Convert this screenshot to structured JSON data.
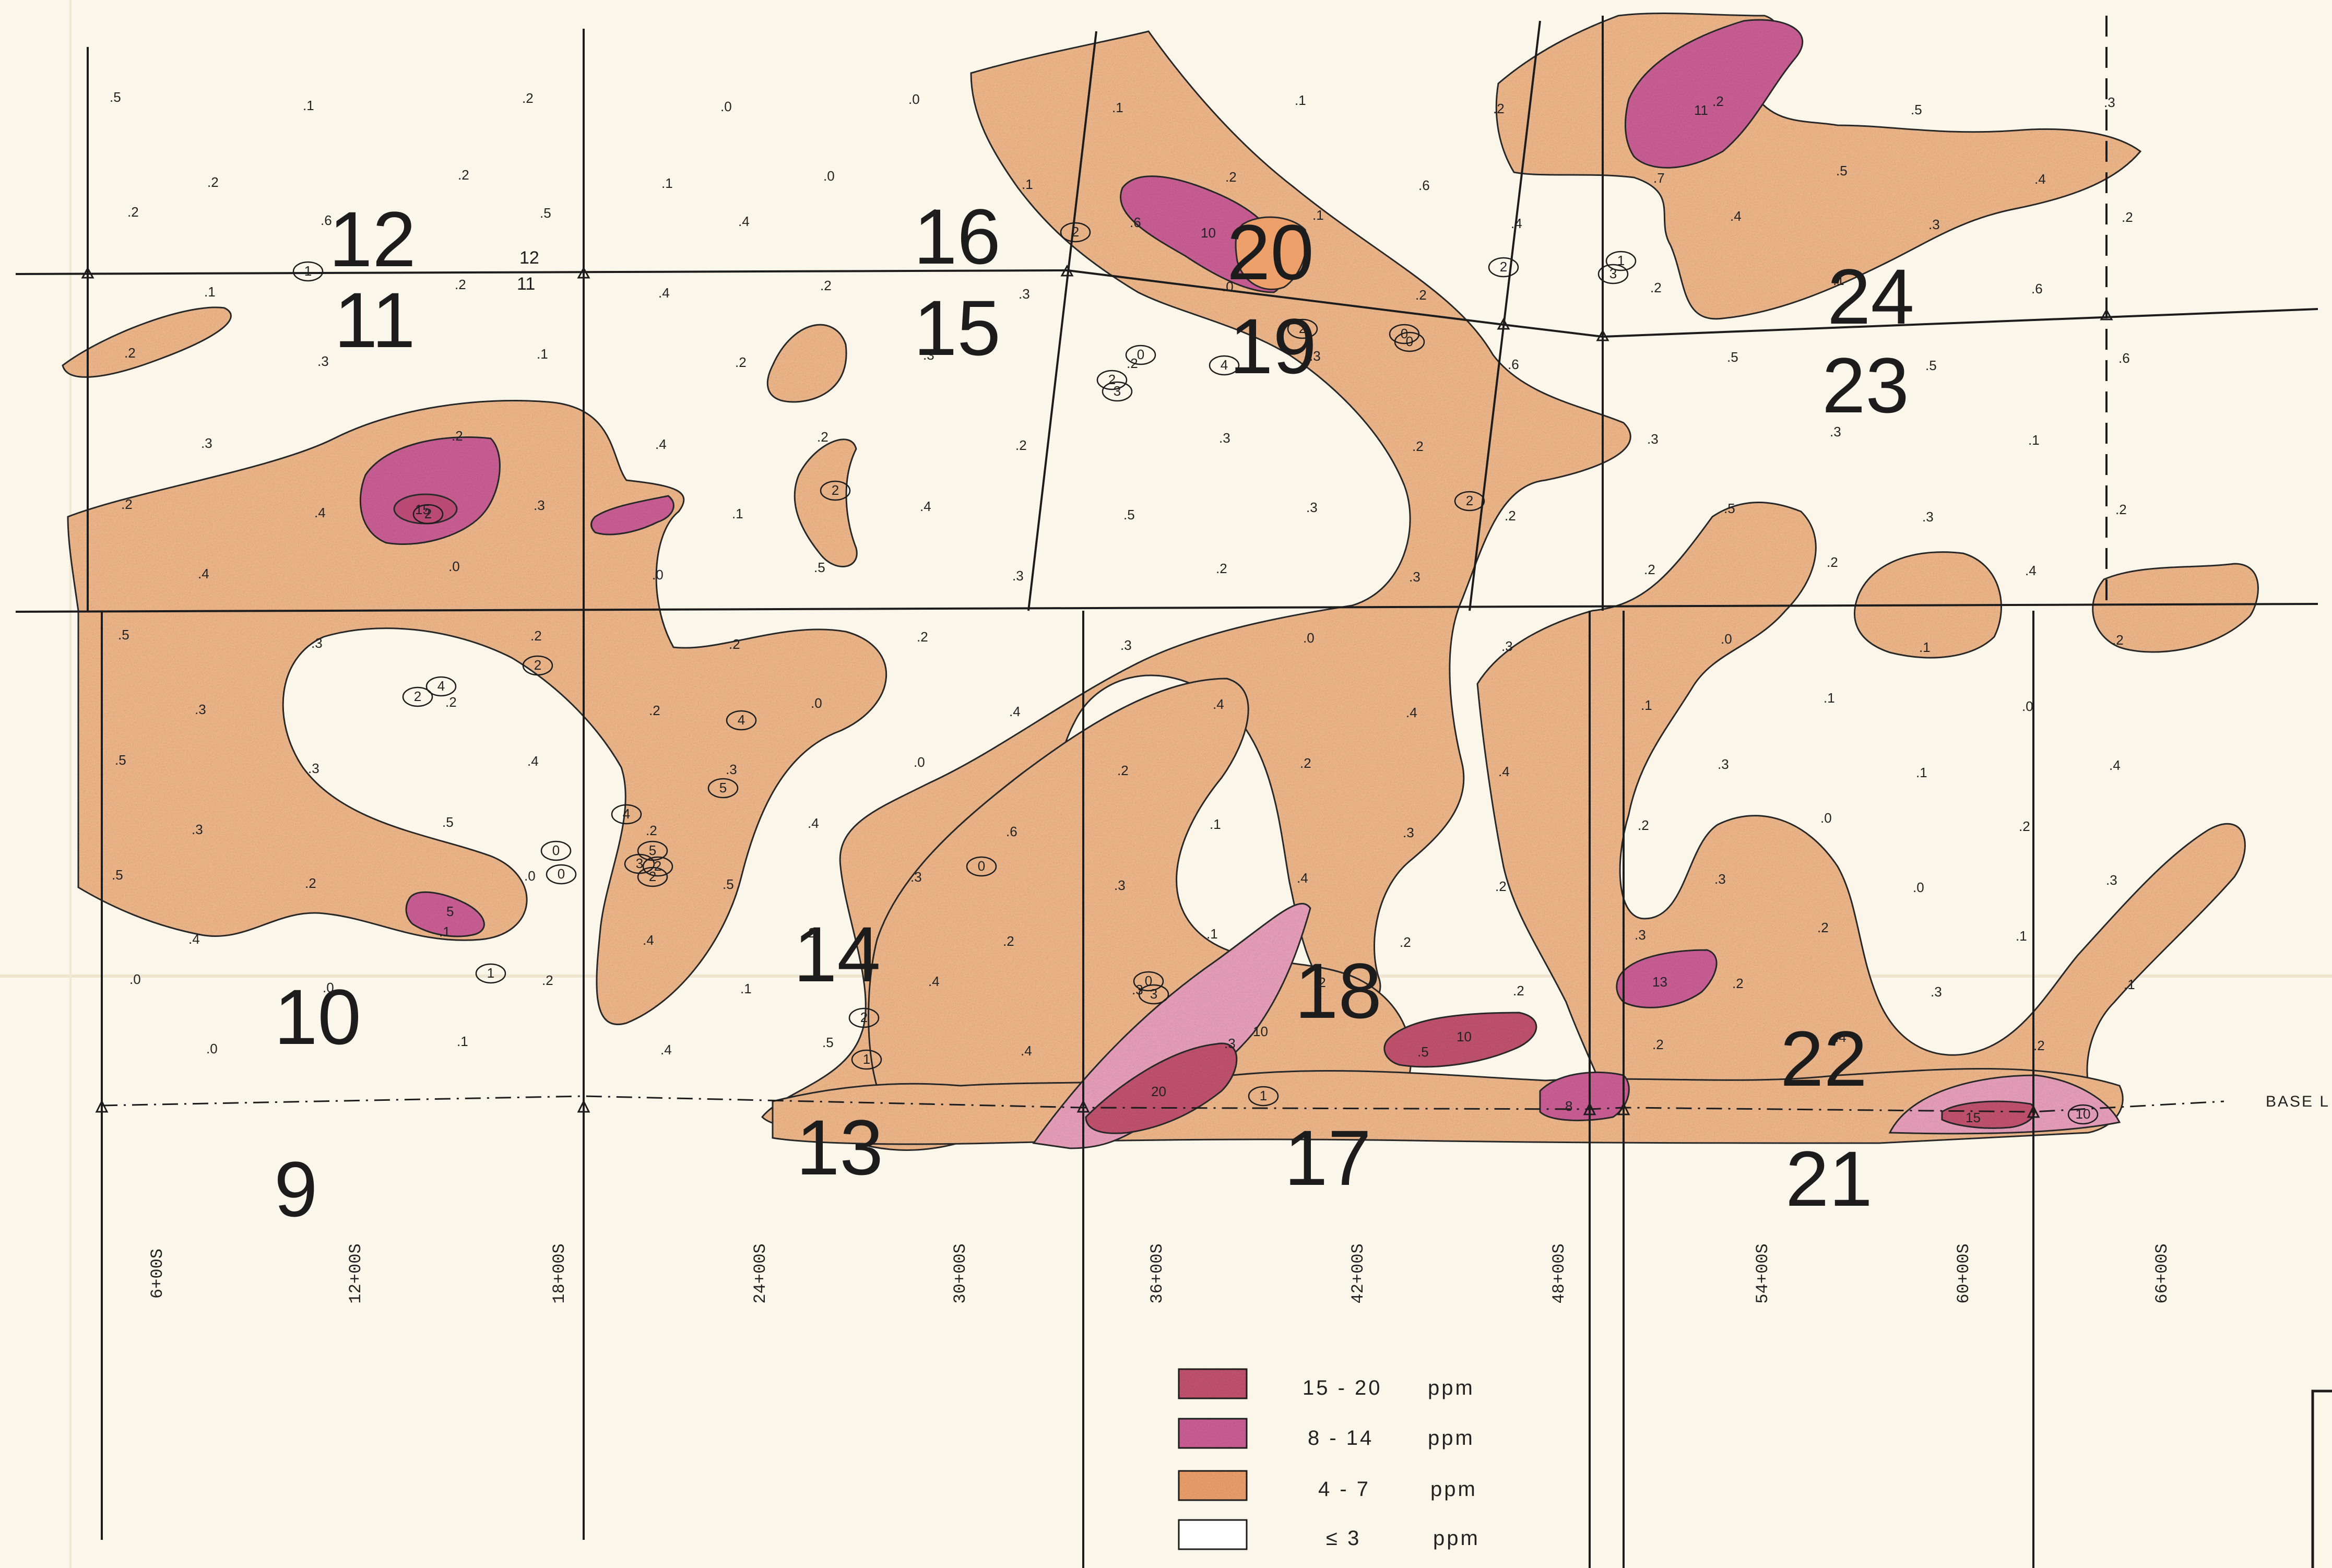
{
  "colors": {
    "paper": "#fbf6ea",
    "low_orange": "#f0b88c",
    "mid_magenta": "#cc5f96",
    "high_red": "#c2536f",
    "pink": "#e9a0bb",
    "line": "#1c1c1c"
  },
  "grid_numbers": [
    "12",
    "11",
    "16",
    "15",
    "20",
    "19",
    "24",
    "23",
    "10",
    "9",
    "14",
    "13",
    "18",
    "17",
    "22",
    "21"
  ],
  "stations": [
    "6+00S",
    "12+00S",
    "18+00S",
    "24+00S",
    "30+00S",
    "36+00S",
    "42+00S",
    "48+00S",
    "54+00S",
    "60+00S",
    "66+00S"
  ],
  "baseline_label": "BASE L",
  "top_line_labels": [
    "12",
    "11"
  ],
  "legend": [
    {
      "label": "15 - 20",
      "unit": "ppm",
      "color": "#c2536f"
    },
    {
      "label": "8 - 14",
      "unit": "ppm",
      "color": "#cc5f96"
    },
    {
      "label": "4 - 7",
      "unit": "ppm",
      "color": "#f0b88c"
    },
    {
      "label": "≤ 3",
      "unit": "ppm",
      "color": "#ffffff"
    }
  ],
  "samples": [
    ".5",
    ".1",
    ".2",
    ".0",
    ".0",
    ".1",
    ".1",
    ".2",
    ".2",
    ".5",
    ".3",
    ".2",
    ".2",
    ".1",
    ".0",
    ".1",
    ".2",
    ".6",
    ".7",
    ".5",
    ".4",
    ".2",
    ".6",
    ".5",
    ".4",
    ".4",
    ".6",
    ".1",
    ".4",
    ".4",
    ".3",
    ".2",
    ".1",
    ".2",
    ".4",
    ".2",
    ".3",
    ".0",
    ".2",
    ".2",
    ".1",
    ".6",
    ".2",
    ".3",
    ".1",
    ".2",
    ".3",
    ".2",
    ".3",
    ".6",
    ".5",
    ".5",
    ".6",
    ".3",
    ".2",
    ".4",
    ".2",
    ".2",
    ".3",
    ".2",
    ".3",
    ".3",
    ".1",
    ".2",
    ".4",
    ".3",
    ".1",
    ".4",
    ".5",
    ".3",
    ".2",
    ".5",
    ".3",
    ".2",
    ".4",
    ".0",
    ".0",
    ".5",
    ".3",
    ".2",
    ".3",
    ".2",
    ".2",
    ".4",
    ".5",
    ".3",
    ".2",
    ".2",
    ".2",
    ".3",
    ".0",
    ".3",
    ".0",
    ".1",
    ".2",
    ".3",
    ".2",
    ".2",
    ".0",
    ".4",
    ".4",
    ".4",
    ".1",
    ".1",
    ".0",
    ".5",
    ".3",
    ".4",
    ".3",
    ".0",
    ".2",
    ".2",
    ".4",
    ".3",
    ".1",
    ".4",
    ".3",
    ".5",
    ".2",
    ".4",
    ".6",
    ".1",
    ".3",
    ".2",
    ".0",
    ".2",
    ".5",
    ".2",
    ".0",
    ".5",
    ".3",
    ".3",
    ".4",
    ".2",
    ".3",
    ".0",
    ".3",
    ".4",
    ".1",
    ".4",
    ".2",
    ".2",
    ".1",
    ".2",
    ".3",
    ".2",
    ".1",
    ".0",
    ".0",
    ".2",
    ".1",
    ".4",
    ".3",
    ".2",
    ".2",
    ".2",
    ".3",
    ".1",
    ".0",
    ".1",
    ".4",
    ".5",
    ".4",
    ".3",
    ".5",
    ".2",
    ".4",
    ".2",
    ".3",
    ".6",
    ".2",
    ".3",
    ".1",
    ".4",
    ".2",
    ".5",
    ".7",
    ".4",
    ".6",
    ".4"
  ],
  "circled_samples": [
    "1",
    "2",
    "2",
    "2",
    "3",
    "0",
    "4",
    "2",
    "0",
    "2",
    "2",
    "2",
    "5",
    "2",
    "0",
    "2",
    "4",
    "2",
    "1",
    "3",
    "0",
    "0",
    "4",
    "4",
    "0",
    "2",
    "1",
    "1",
    "3",
    "0",
    "1",
    "5",
    "3",
    "2",
    "10"
  ],
  "anomaly_labels": [
    "15",
    "10",
    "11",
    "5",
    "10",
    "20",
    "13",
    "10",
    "8",
    "15"
  ]
}
